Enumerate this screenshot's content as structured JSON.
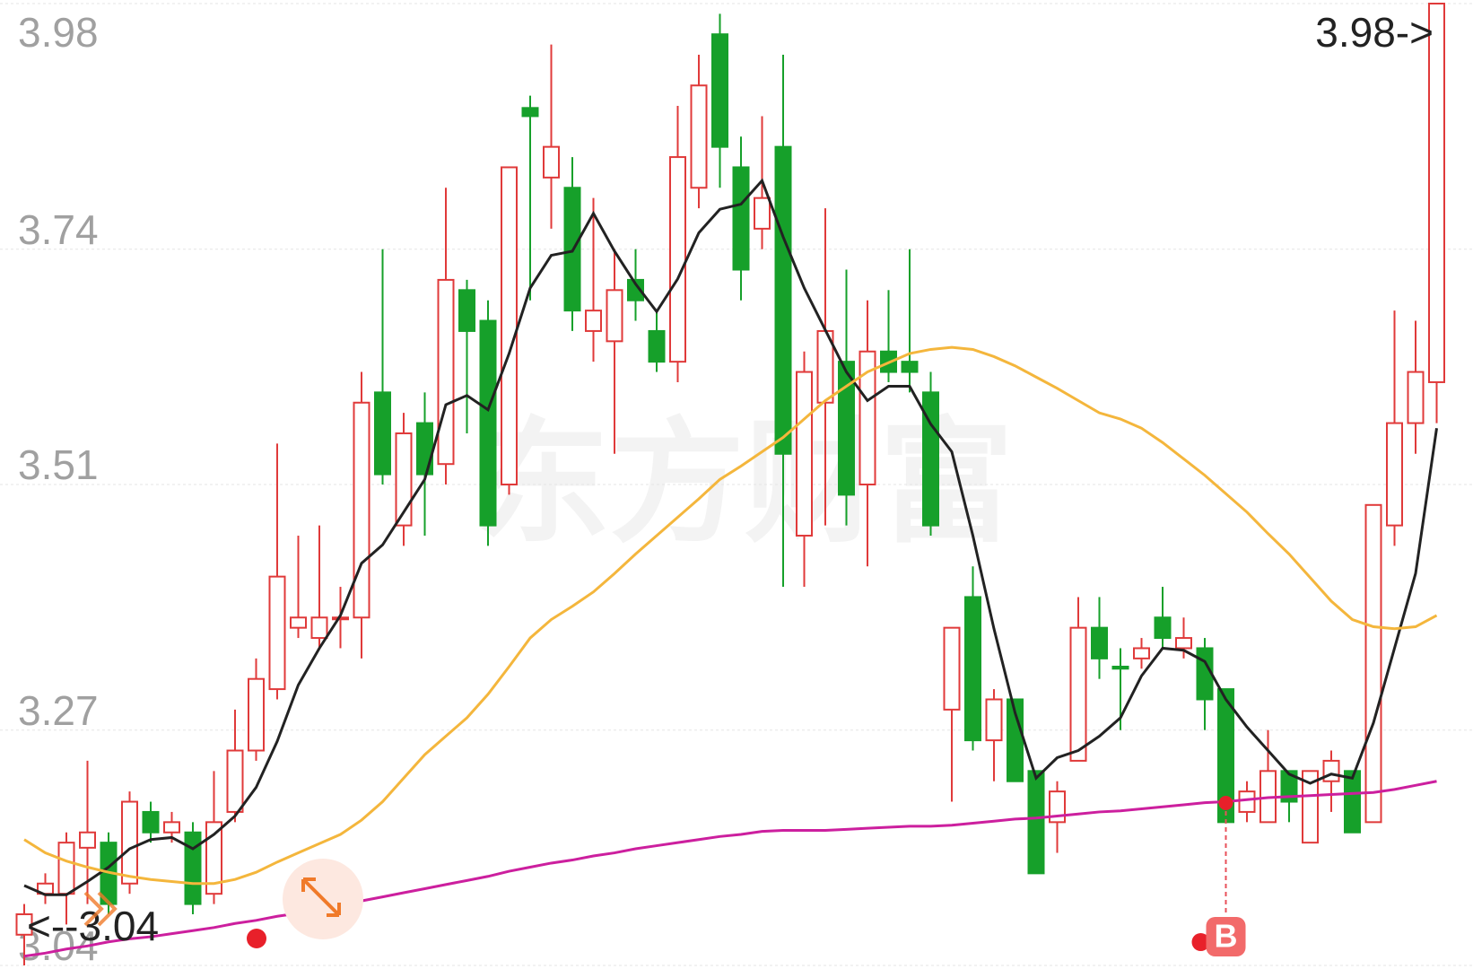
{
  "chart_data": {
    "type": "candlestick",
    "up_color": "#e03a3a",
    "down_color": "#16a02a",
    "ylim": [
      3.04,
      3.98
    ],
    "yticks": [
      3.98,
      3.74,
      3.51,
      3.27,
      3.04
    ],
    "grid": true,
    "max_label": "3.98->",
    "min_label": "<--3.04",
    "buy_marker": "B",
    "watermark": "东方财富",
    "open": [
      3.07,
      3.11,
      3.11,
      3.155,
      3.16,
      3.12,
      3.19,
      3.17,
      3.17,
      3.11,
      3.19,
      3.25,
      3.31,
      3.37,
      3.36,
      3.38,
      3.38,
      3.6,
      3.47,
      3.57,
      3.53,
      3.7,
      3.67,
      3.51,
      3.878,
      3.81,
      3.8,
      3.66,
      3.65,
      3.71,
      3.66,
      3.63,
      3.8,
      3.95,
      3.82,
      3.76,
      3.84,
      3.46,
      3.59,
      3.63,
      3.51,
      3.64,
      3.63,
      3.6,
      3.29,
      3.4,
      3.26,
      3.3,
      3.23,
      3.18,
      3.24,
      3.37,
      3.332,
      3.34,
      3.38,
      3.35,
      3.35,
      3.31,
      3.19,
      3.18,
      3.23,
      3.16,
      3.22,
      3.23,
      3.18,
      3.47,
      3.57,
      3.61
    ],
    "high": [
      3.1,
      3.13,
      3.17,
      3.24,
      3.17,
      3.21,
      3.2,
      3.19,
      3.18,
      3.23,
      3.29,
      3.34,
      3.55,
      3.46,
      3.47,
      3.41,
      3.62,
      3.74,
      3.58,
      3.6,
      3.8,
      3.71,
      3.69,
      3.82,
      3.89,
      3.94,
      3.83,
      3.79,
      3.74,
      3.74,
      3.68,
      3.88,
      3.93,
      3.97,
      3.85,
      3.87,
      3.93,
      3.64,
      3.78,
      3.72,
      3.69,
      3.7,
      3.74,
      3.62,
      3.37,
      3.43,
      3.31,
      3.3,
      3.23,
      3.22,
      3.4,
      3.4,
      3.35,
      3.36,
      3.41,
      3.38,
      3.36,
      3.31,
      3.22,
      3.27,
      3.23,
      3.23,
      3.25,
      3.23,
      3.49,
      3.68,
      3.67,
      3.98
    ],
    "low": [
      3.04,
      3.1,
      3.08,
      3.1,
      3.09,
      3.11,
      3.16,
      3.16,
      3.09,
      3.1,
      3.18,
      3.24,
      3.3,
      3.36,
      3.35,
      3.35,
      3.34,
      3.51,
      3.45,
      3.46,
      3.51,
      3.56,
      3.45,
      3.5,
      3.69,
      3.76,
      3.66,
      3.63,
      3.54,
      3.67,
      3.62,
      3.61,
      3.78,
      3.8,
      3.69,
      3.74,
      3.41,
      3.41,
      3.47,
      3.47,
      3.43,
      3.61,
      3.6,
      3.46,
      3.2,
      3.25,
      3.22,
      3.22,
      3.13,
      3.15,
      3.24,
      3.32,
      3.27,
      3.33,
      3.35,
      3.34,
      3.27,
      3.18,
      3.18,
      3.18,
      3.18,
      3.16,
      3.19,
      3.17,
      3.18,
      3.45,
      3.54,
      3.57
    ],
    "close": [
      3.09,
      3.12,
      3.16,
      3.17,
      3.1,
      3.2,
      3.17,
      3.18,
      3.1,
      3.18,
      3.25,
      3.32,
      3.42,
      3.38,
      3.38,
      3.38,
      3.59,
      3.52,
      3.56,
      3.52,
      3.71,
      3.66,
      3.47,
      3.82,
      3.87,
      3.84,
      3.68,
      3.68,
      3.7,
      3.69,
      3.63,
      3.83,
      3.9,
      3.84,
      3.72,
      3.79,
      3.54,
      3.62,
      3.66,
      3.5,
      3.64,
      3.62,
      3.62,
      3.47,
      3.37,
      3.26,
      3.3,
      3.22,
      3.13,
      3.21,
      3.37,
      3.34,
      3.33,
      3.35,
      3.36,
      3.36,
      3.3,
      3.18,
      3.21,
      3.23,
      3.2,
      3.23,
      3.24,
      3.17,
      3.49,
      3.57,
      3.62,
      3.98
    ],
    "lines": [
      {
        "color": "#222222",
        "values": [
          3.118,
          3.109,
          3.109,
          3.122,
          3.136,
          3.154,
          3.163,
          3.165,
          3.154,
          3.168,
          3.186,
          3.214,
          3.259,
          3.314,
          3.35,
          3.382,
          3.433,
          3.451,
          3.483,
          3.515,
          3.588,
          3.597,
          3.583,
          3.638,
          3.702,
          3.734,
          3.738,
          3.775,
          3.738,
          3.706,
          3.679,
          3.711,
          3.756,
          3.779,
          3.784,
          3.807,
          3.752,
          3.702,
          3.661,
          3.62,
          3.592,
          3.606,
          3.606,
          3.569,
          3.542,
          3.46,
          3.369,
          3.287,
          3.223,
          3.243,
          3.25,
          3.264,
          3.282,
          3.323,
          3.35,
          3.348,
          3.337,
          3.3,
          3.273,
          3.25,
          3.227,
          3.218,
          3.227,
          3.223,
          3.277,
          3.35,
          3.423,
          3.565
        ]
      },
      {
        "color": "#f4b63c",
        "values": [
          3.163,
          3.15,
          3.142,
          3.136,
          3.131,
          3.127,
          3.124,
          3.122,
          3.12,
          3.12,
          3.124,
          3.131,
          3.141,
          3.15,
          3.159,
          3.168,
          3.182,
          3.2,
          3.223,
          3.246,
          3.264,
          3.282,
          3.305,
          3.332,
          3.36,
          3.378,
          3.391,
          3.405,
          3.423,
          3.442,
          3.46,
          3.478,
          3.496,
          3.515,
          3.528,
          3.542,
          3.556,
          3.574,
          3.592,
          3.606,
          3.62,
          3.629,
          3.638,
          3.642,
          3.644,
          3.642,
          3.635,
          3.626,
          3.615,
          3.604,
          3.592,
          3.58,
          3.574,
          3.565,
          3.551,
          3.535,
          3.519,
          3.501,
          3.483,
          3.462,
          3.442,
          3.419,
          3.396,
          3.378,
          3.371,
          3.369,
          3.371,
          3.382
        ]
      },
      {
        "color": "#cc1f9e",
        "values": [
          3.049,
          3.052,
          3.056,
          3.059,
          3.063,
          3.066,
          3.068,
          3.071,
          3.074,
          3.077,
          3.081,
          3.084,
          3.088,
          3.091,
          3.095,
          3.099,
          3.103,
          3.107,
          3.111,
          3.115,
          3.119,
          3.123,
          3.127,
          3.132,
          3.136,
          3.14,
          3.143,
          3.147,
          3.15,
          3.154,
          3.157,
          3.16,
          3.163,
          3.166,
          3.168,
          3.171,
          3.172,
          3.172,
          3.172,
          3.173,
          3.174,
          3.175,
          3.176,
          3.176,
          3.177,
          3.179,
          3.181,
          3.183,
          3.184,
          3.186,
          3.188,
          3.19,
          3.191,
          3.193,
          3.195,
          3.197,
          3.199,
          3.2,
          3.202,
          3.204,
          3.205,
          3.206,
          3.207,
          3.208,
          3.209,
          3.212,
          3.216,
          3.22
        ]
      }
    ]
  }
}
